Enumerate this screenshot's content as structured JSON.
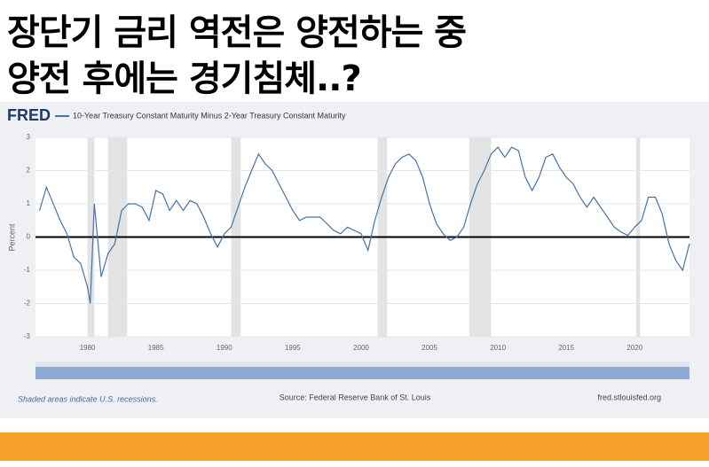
{
  "headline": [
    "장단기 금리 역전은 양전하는 중",
    "양전 후에는 경기침체..?"
  ],
  "chart_data": {
    "type": "line",
    "logo": "FRED",
    "series": [
      {
        "name": "10-Year Treasury Constant Maturity Minus 2-Year Treasury Constant Maturity",
        "color": "#4572a7",
        "x": [
          1976.5,
          1977,
          1978,
          1978.5,
          1979,
          1979.5,
          1980,
          1980.2,
          1980.5,
          1981,
          1981.5,
          1982,
          1982.5,
          1983,
          1983.5,
          1984,
          1984.5,
          1985,
          1985.5,
          1986,
          1986.5,
          1987,
          1987.5,
          1988,
          1988.5,
          1989,
          1989.5,
          1990,
          1990.5,
          1991,
          1991.5,
          1992,
          1992.5,
          1993,
          1993.5,
          1994,
          1994.5,
          1995,
          1995.5,
          1996,
          1996.5,
          1997,
          1997.5,
          1998,
          1998.5,
          1999,
          1999.5,
          2000,
          2000.5,
          2001,
          2001.5,
          2002,
          2002.5,
          2003,
          2003.5,
          2004,
          2004.5,
          2005,
          2005.5,
          2006,
          2006.5,
          2007,
          2007.5,
          2008,
          2008.5,
          2009,
          2009.5,
          2010,
          2010.5,
          2011,
          2011.5,
          2012,
          2012.5,
          2013,
          2013.5,
          2014,
          2014.5,
          2015,
          2015.5,
          2016,
          2016.5,
          2017,
          2017.5,
          2018,
          2018.5,
          2019,
          2019.5,
          2020,
          2020.5,
          2021,
          2021.5,
          2022,
          2022.5,
          2023,
          2023.5,
          2024
        ],
        "values": [
          0.8,
          1.5,
          0.5,
          0.1,
          -0.6,
          -0.8,
          -1.5,
          -2.0,
          1.0,
          -1.2,
          -0.5,
          -0.2,
          0.8,
          1.0,
          1.0,
          0.9,
          0.5,
          1.4,
          1.3,
          0.8,
          1.1,
          0.8,
          1.1,
          1.0,
          0.6,
          0.1,
          -0.3,
          0.1,
          0.3,
          0.9,
          1.5,
          2.0,
          2.5,
          2.2,
          2.0,
          1.6,
          1.2,
          0.8,
          0.5,
          0.6,
          0.6,
          0.6,
          0.4,
          0.2,
          0.1,
          0.3,
          0.2,
          0.1,
          -0.4,
          0.5,
          1.2,
          1.8,
          2.2,
          2.4,
          2.5,
          2.3,
          1.8,
          1.0,
          0.4,
          0.1,
          -0.1,
          0.0,
          0.3,
          1.0,
          1.6,
          2.0,
          2.5,
          2.7,
          2.4,
          2.7,
          2.6,
          1.8,
          1.4,
          1.8,
          2.4,
          2.5,
          2.1,
          1.8,
          1.6,
          1.2,
          0.9,
          1.2,
          0.9,
          0.6,
          0.3,
          0.15,
          0.05,
          0.3,
          0.5,
          1.2,
          1.2,
          0.7,
          -0.2,
          -0.7,
          -1.0,
          -0.2
        ]
      }
    ],
    "recessions": [
      [
        1980.0,
        1980.5
      ],
      [
        1981.5,
        1982.9
      ],
      [
        1990.5,
        1991.2
      ],
      [
        2001.2,
        2001.9
      ],
      [
        2007.9,
        2009.5
      ],
      [
        2020.1,
        2020.4
      ]
    ],
    "baseline": 0,
    "ylabel": "Percent",
    "xlim": [
      1976.2,
      2024.0
    ],
    "xticks": [
      1980,
      1985,
      1990,
      1995,
      2000,
      2005,
      2010,
      2015,
      2020
    ],
    "ylim": [
      -3,
      3
    ],
    "yticks": [
      -3,
      -2,
      -1,
      0,
      1,
      2,
      3
    ],
    "grid": true,
    "note": "Shaded areas indicate U.S. recessions.",
    "source": "Source: Federal Reserve Bank of St. Louis",
    "site": "fred.stlouisfed.org"
  }
}
